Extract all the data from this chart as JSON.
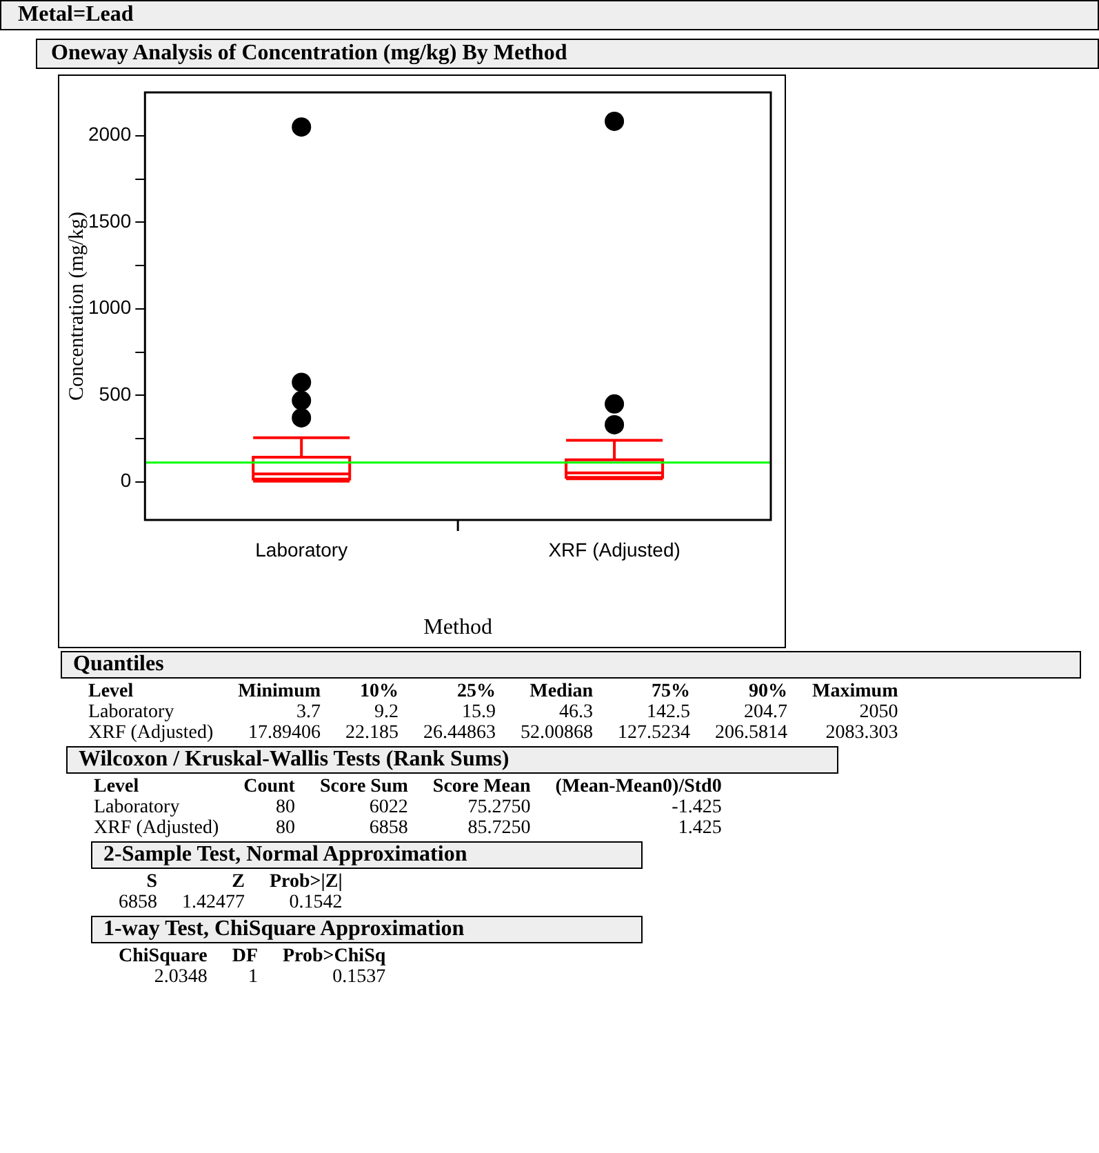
{
  "chart_data": {
    "type": "box",
    "title": "Metal=Lead",
    "subtitle": "Oneway Analysis of Concentration (mg/kg) By Method",
    "xlabel": "Method",
    "ylabel": "Concentration (mg/kg)",
    "categories": [
      "Laboratory",
      "XRF (Adjusted)"
    ],
    "boxes": [
      {
        "low": 3.7,
        "q1": 15.9,
        "median": 46.3,
        "q3": 142.5,
        "high": 255,
        "outliers": [
          370,
          470,
          575,
          2050
        ]
      },
      {
        "low": 17.9,
        "q1": 26.4,
        "median": 52.0,
        "q3": 127.5,
        "high": 240,
        "outliers": [
          330,
          450,
          2083
        ]
      }
    ],
    "ylim": [
      -220,
      2250
    ],
    "yticks": [
      0,
      {
        "value": 250,
        "label": null
      },
      500,
      {
        "value": 750,
        "label": null
      },
      1000,
      {
        "value": 1250,
        "label": null
      },
      1500,
      {
        "value": 1750,
        "label": null
      },
      2000
    ],
    "ref_lines": [
      {
        "axis": "y",
        "value": 112,
        "color": "#00ff00"
      }
    ],
    "marker": "circle",
    "legend": false,
    "grid": false,
    "annotations": [
      "Quantiles",
      "Level\tMinimum\t10%\t25%\tMedian\t75%\t90%\tMaximum",
      "Laboratory\t3.7\t9.2\t15.9\t46.3\t142.5\t204.7\t2050",
      "XRF (Adjusted)\t17.89406\t22.185\t26.44863\t52.00868\t127.5234\t206.5814\t2083.303",
      "Wilcoxon / Kruskal-Wallis Tests (Rank Sums)",
      "Level\tCount\tScore Sum\tScore Mean\t(Mean-Mean0)/Std0",
      "Laboratory\t80\t6022\t75.2750\t-1.425",
      "XRF (Adjusted)\t80\t6858\t85.7250\t1.425",
      "2-Sample Test, Normal Approximation",
      "S\tZ\tProb>|Z|",
      "6858\t1.42477\t0.1542",
      "1-way Test, ChiSquare Approximation",
      "ChiSquare\tDF\tProb>ChiSq",
      "2.0348\t1\t0.1537"
    ]
  }
}
